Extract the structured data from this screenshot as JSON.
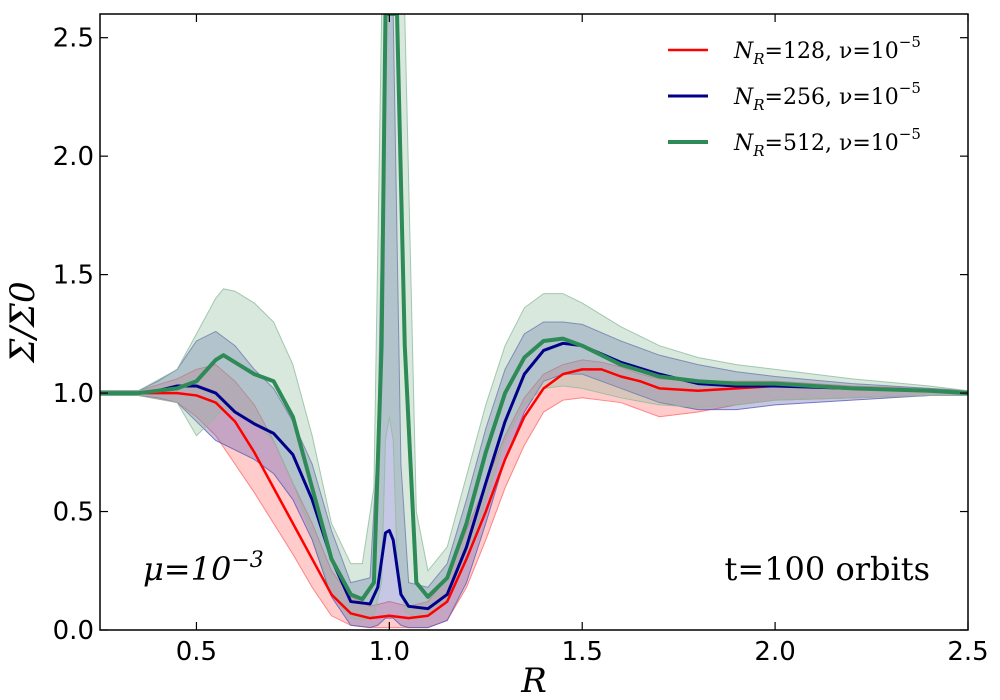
{
  "chart_data": {
    "type": "line",
    "title": "",
    "xlabel": "R",
    "ylabel": "Σ/Σ0",
    "xlim": [
      0.25,
      2.5
    ],
    "ylim": [
      0.0,
      2.6
    ],
    "xticks": [
      "0.5",
      "1.0",
      "1.5",
      "2.0",
      "2.5"
    ],
    "yticks": [
      "0.0",
      "0.5",
      "1.0",
      "1.5",
      "2.0",
      "2.5"
    ],
    "grid": false,
    "legend_position": "top-right",
    "annotations": {
      "left": "μ=10",
      "left_exp": "−3",
      "right": "t=100 orbits"
    },
    "series": [
      {
        "name": "N_R=128, ν=10^-5",
        "legend_prefix": "N",
        "legend_sub": "R",
        "legend_eq": "=128, ν=10",
        "legend_exp": "−5",
        "color": "#ff0000",
        "band_color": "#ff6b6b",
        "x": [
          0.25,
          0.35,
          0.45,
          0.5,
          0.55,
          0.6,
          0.65,
          0.7,
          0.75,
          0.8,
          0.85,
          0.9,
          0.95,
          1.0,
          1.05,
          1.1,
          1.15,
          1.2,
          1.25,
          1.3,
          1.35,
          1.4,
          1.45,
          1.5,
          1.55,
          1.6,
          1.65,
          1.7,
          1.8,
          1.9,
          2.0,
          2.2,
          2.4,
          2.5
        ],
        "values": [
          1.0,
          1.0,
          1.0,
          0.99,
          0.96,
          0.88,
          0.75,
          0.6,
          0.45,
          0.3,
          0.15,
          0.07,
          0.05,
          0.06,
          0.05,
          0.06,
          0.12,
          0.3,
          0.5,
          0.72,
          0.9,
          1.02,
          1.08,
          1.1,
          1.1,
          1.07,
          1.05,
          1.02,
          1.01,
          1.02,
          1.03,
          1.02,
          1.01,
          1.0
        ],
        "upper": [
          1.01,
          1.01,
          1.06,
          1.1,
          1.12,
          1.05,
          0.95,
          0.8,
          0.62,
          0.45,
          0.25,
          0.14,
          0.1,
          0.12,
          0.1,
          0.12,
          0.22,
          0.42,
          0.62,
          0.82,
          0.98,
          1.08,
          1.12,
          1.14,
          1.13,
          1.11,
          1.08,
          1.06,
          1.05,
          1.05,
          1.05,
          1.03,
          1.02,
          1.01
        ],
        "lower": [
          0.99,
          0.99,
          0.96,
          0.9,
          0.82,
          0.7,
          0.58,
          0.45,
          0.32,
          0.18,
          0.06,
          0.02,
          0.01,
          0.01,
          0.01,
          0.01,
          0.04,
          0.18,
          0.38,
          0.6,
          0.78,
          0.92,
          0.97,
          0.98,
          0.97,
          0.96,
          0.93,
          0.9,
          0.92,
          0.95,
          0.97,
          0.98,
          0.99,
          0.99
        ]
      },
      {
        "name": "N_R=256, ν=10^-5",
        "legend_prefix": "N",
        "legend_sub": "R",
        "legend_eq": "=256, ν=10",
        "legend_exp": "−5",
        "color": "#00008b",
        "band_color": "#5b5bb4",
        "x": [
          0.25,
          0.35,
          0.4,
          0.45,
          0.5,
          0.55,
          0.6,
          0.65,
          0.7,
          0.75,
          0.8,
          0.85,
          0.9,
          0.95,
          0.97,
          0.99,
          1.0,
          1.01,
          1.03,
          1.05,
          1.1,
          1.15,
          1.2,
          1.25,
          1.3,
          1.35,
          1.4,
          1.45,
          1.5,
          1.6,
          1.7,
          1.8,
          1.9,
          2.0,
          2.2,
          2.4,
          2.5
        ],
        "values": [
          1.0,
          1.0,
          1.01,
          1.03,
          1.03,
          1.0,
          0.92,
          0.87,
          0.83,
          0.74,
          0.55,
          0.3,
          0.12,
          0.11,
          0.18,
          0.41,
          0.42,
          0.38,
          0.15,
          0.1,
          0.09,
          0.15,
          0.35,
          0.62,
          0.88,
          1.08,
          1.18,
          1.21,
          1.2,
          1.13,
          1.08,
          1.04,
          1.03,
          1.03,
          1.02,
          1.01,
          1.0
        ],
        "upper": [
          1.01,
          1.01,
          1.05,
          1.1,
          1.22,
          1.26,
          1.2,
          1.1,
          1.02,
          0.88,
          0.7,
          0.42,
          0.2,
          0.22,
          0.8,
          2.6,
          2.6,
          2.6,
          0.7,
          0.2,
          0.18,
          0.28,
          0.55,
          0.85,
          1.1,
          1.25,
          1.3,
          1.3,
          1.29,
          1.22,
          1.16,
          1.12,
          1.09,
          1.07,
          1.04,
          1.02,
          1.01
        ],
        "lower": [
          0.99,
          0.99,
          0.98,
          0.96,
          0.88,
          0.8,
          0.76,
          0.72,
          0.66,
          0.55,
          0.38,
          0.14,
          0.02,
          0.01,
          0.02,
          0.05,
          0.05,
          0.05,
          0.02,
          0.01,
          0.01,
          0.04,
          0.2,
          0.45,
          0.72,
          0.92,
          1.05,
          1.08,
          1.08,
          1.02,
          0.96,
          0.93,
          0.93,
          0.95,
          0.97,
          0.99,
          0.99
        ]
      },
      {
        "name": "N_R=512, ν=10^-5",
        "legend_prefix": "N",
        "legend_sub": "R",
        "legend_eq": "=512, ν=10",
        "legend_exp": "−5",
        "color": "#2e8b57",
        "band_color": "#8fbc9f",
        "x": [
          0.25,
          0.35,
          0.45,
          0.5,
          0.55,
          0.57,
          0.6,
          0.65,
          0.7,
          0.75,
          0.8,
          0.85,
          0.9,
          0.93,
          0.96,
          0.98,
          0.99,
          1.0,
          1.01,
          1.02,
          1.04,
          1.07,
          1.1,
          1.15,
          1.2,
          1.25,
          1.3,
          1.35,
          1.4,
          1.45,
          1.5,
          1.6,
          1.7,
          1.8,
          1.9,
          2.0,
          2.2,
          2.4,
          2.5
        ],
        "values": [
          1.0,
          1.0,
          1.02,
          1.05,
          1.14,
          1.16,
          1.13,
          1.08,
          1.05,
          0.9,
          0.6,
          0.3,
          0.15,
          0.13,
          0.2,
          1.2,
          2.6,
          2.6,
          2.6,
          2.6,
          1.2,
          0.2,
          0.14,
          0.22,
          0.45,
          0.75,
          1.0,
          1.15,
          1.22,
          1.23,
          1.2,
          1.12,
          1.07,
          1.05,
          1.04,
          1.04,
          1.02,
          1.01,
          1.0
        ],
        "upper": [
          1.01,
          1.01,
          1.1,
          1.25,
          1.4,
          1.44,
          1.43,
          1.38,
          1.3,
          1.12,
          0.82,
          0.45,
          0.28,
          0.28,
          0.6,
          2.6,
          2.6,
          2.6,
          2.6,
          2.6,
          2.6,
          0.5,
          0.25,
          0.35,
          0.65,
          0.95,
          1.2,
          1.36,
          1.42,
          1.42,
          1.38,
          1.28,
          1.2,
          1.15,
          1.12,
          1.1,
          1.06,
          1.03,
          1.01
        ],
        "lower": [
          0.99,
          0.99,
          0.96,
          0.82,
          0.9,
          0.94,
          0.92,
          0.88,
          0.8,
          0.62,
          0.4,
          0.15,
          0.05,
          0.04,
          0.06,
          0.2,
          0.8,
          0.9,
          0.8,
          0.3,
          0.08,
          0.05,
          0.06,
          0.12,
          0.3,
          0.55,
          0.8,
          0.95,
          1.02,
          1.03,
          1.02,
          0.98,
          0.95,
          0.94,
          0.95,
          0.97,
          0.98,
          0.99,
          0.99
        ]
      }
    ]
  }
}
